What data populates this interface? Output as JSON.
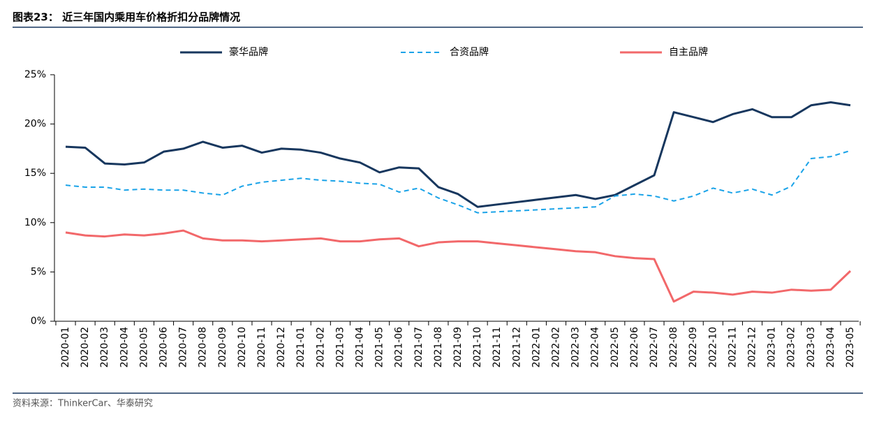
{
  "chart_data": {
    "type": "line",
    "title": "图表23： 近三年国内乘用车价格折扣分品牌情况",
    "source": "资料来源：ThinkerCar、华泰研究",
    "categories": [
      "2020-01",
      "2020-02",
      "2020-03",
      "2020-04",
      "2020-05",
      "2020-06",
      "2020-07",
      "2020-08",
      "2020-09",
      "2020-10",
      "2020-11",
      "2020-12",
      "2021-01",
      "2021-02",
      "2021-03",
      "2021-04",
      "2021-05",
      "2021-06",
      "2021-07",
      "2021-08",
      "2021-09",
      "2021-10",
      "2021-11",
      "2021-12",
      "2022-01",
      "2022-02",
      "2022-03",
      "2022-04",
      "2022-05",
      "2022-06",
      "2022-07",
      "2022-08",
      "2022-09",
      "2022-10",
      "2022-11",
      "2022-12",
      "2023-01",
      "2023-02",
      "2023-03",
      "2023-04",
      "2023-05"
    ],
    "series": [
      {
        "name": "豪华品牌",
        "color": "#17375e",
        "dash": false,
        "values": [
          17.7,
          17.6,
          16.0,
          15.9,
          16.1,
          17.2,
          17.5,
          18.2,
          17.6,
          17.8,
          17.1,
          17.5,
          17.4,
          17.1,
          16.5,
          16.1,
          15.1,
          15.6,
          15.5,
          13.6,
          12.9,
          11.6,
          11.84,
          12.08,
          12.32,
          12.56,
          12.8,
          12.4,
          12.8,
          13.8,
          14.8,
          21.2,
          20.7,
          20.2,
          21.0,
          21.5,
          20.7,
          20.7,
          21.9,
          22.2,
          21.9
        ]
      },
      {
        "name": "合资品牌",
        "color": "#1aa3e8",
        "dash": true,
        "values": [
          13.8,
          13.6,
          13.6,
          13.3,
          13.4,
          13.3,
          13.3,
          13.0,
          12.8,
          13.7,
          14.1,
          14.3,
          14.5,
          14.3,
          14.2,
          14.0,
          13.9,
          13.1,
          13.5,
          12.5,
          11.8,
          11.0,
          11.1,
          11.2,
          11.3,
          11.4,
          11.5,
          11.6,
          12.7,
          12.9,
          12.7,
          12.2,
          12.7,
          13.5,
          13.0,
          13.4,
          12.8,
          13.7,
          16.5,
          16.7,
          17.3
        ]
      },
      {
        "name": "自主品牌",
        "color": "#f2686a",
        "dash": false,
        "values": [
          9.0,
          8.7,
          8.6,
          8.8,
          8.7,
          8.9,
          9.2,
          8.4,
          8.2,
          8.2,
          8.1,
          8.2,
          8.3,
          8.4,
          8.1,
          8.1,
          8.3,
          8.4,
          7.6,
          8.0,
          8.1,
          8.1,
          7.9,
          7.7,
          7.5,
          7.3,
          7.1,
          7.0,
          6.6,
          6.4,
          6.3,
          2.0,
          3.0,
          2.9,
          2.7,
          3.0,
          2.9,
          3.2,
          3.1,
          3.2,
          5.1
        ]
      }
    ],
    "ylim": [
      0,
      25
    ],
    "yticks": [
      {
        "value": 0,
        "label": "0%"
      },
      {
        "value": 5,
        "label": "5%"
      },
      {
        "value": 10,
        "label": "10%"
      },
      {
        "value": 15,
        "label": "15%"
      },
      {
        "value": 20,
        "label": "20%"
      },
      {
        "value": 25,
        "label": "25%"
      }
    ],
    "legend": "top",
    "grid": false
  }
}
